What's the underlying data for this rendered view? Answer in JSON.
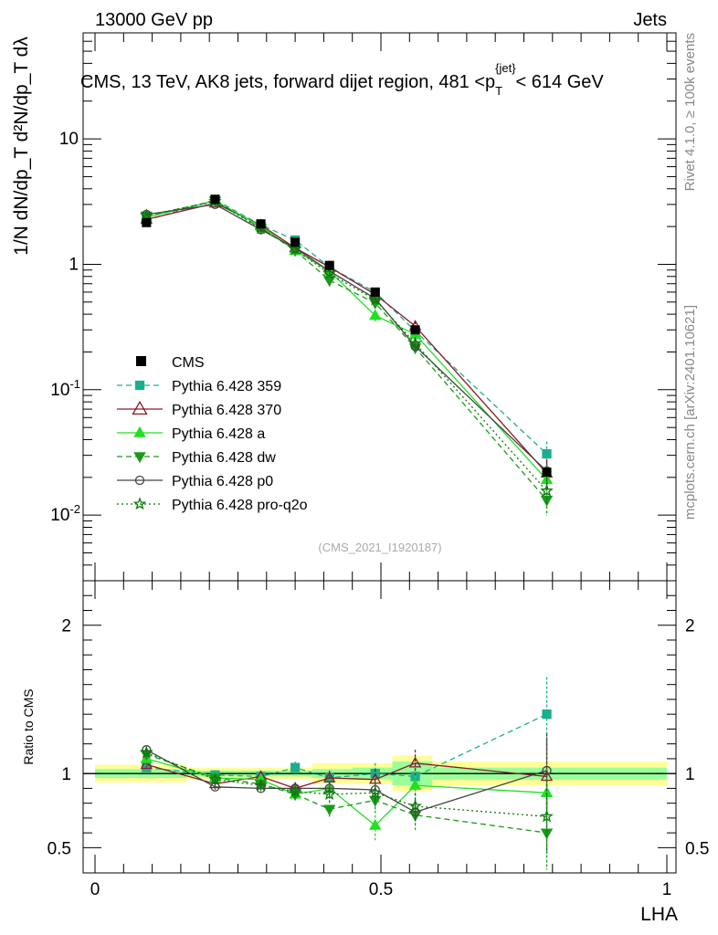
{
  "header": {
    "left": "13000 GeV pp",
    "right": "Jets"
  },
  "title": "CMS, 13 TeV, AK8 jets, forward dijet region, 481 <p",
  "title_sub": "T",
  "title_sup": "{jet}",
  "title_end": "< 614 GeV",
  "side_labels": {
    "rivet": "Rivet 4.1.0, ≥ 100k events",
    "mcplots": "mcplots.cern.ch [arXiv:2401.10621]"
  },
  "analysis_id": "(CMS_2021_I1920187)",
  "ylabel_main": "1/N dN/dp_T d²N/dp_T dλ",
  "ylabel_ratio": "Ratio to CMS",
  "xlabel": "LHA",
  "colors": {
    "cms": "#000000",
    "p359": "#1aaf8c",
    "p370": "#8b1a2a",
    "pa": "#22e022",
    "pdw": "#1a9a1a",
    "pp0": "#444444",
    "ppro": "#0a7a0a",
    "band_outer": "#ffff99",
    "band_inner": "#99ff99"
  },
  "chart_data": {
    "type": "line",
    "title": "CMS, 13 TeV, AK8 jets, forward dijet region, 481 < p_T^{jet} < 614 GeV",
    "xlabel": "LHA",
    "ylabel": "1/N dN/dp_T d²N/dp_T dλ",
    "xlim": [
      0,
      1
    ],
    "ylim": [
      0.003,
      70
    ],
    "yscale": "log",
    "ratio_ylim": [
      0.33,
      2.3
    ],
    "x_ticks": [
      "0",
      "0.5",
      "1"
    ],
    "y_ticks": [
      "10^-2",
      "10^-1",
      "1",
      "10"
    ],
    "ratio_ticks": [
      "0.5",
      "1",
      "2"
    ],
    "x": [
      0.09,
      0.21,
      0.29,
      0.35,
      0.41,
      0.49,
      0.56,
      0.79
    ],
    "reference": {
      "name": "CMS",
      "values": [
        2.15,
        3.3,
        2.1,
        1.5,
        0.98,
        0.6,
        0.3,
        0.022
      ],
      "band_edges": [
        0.0,
        0.16,
        0.25,
        0.32,
        0.38,
        0.45,
        0.52,
        0.59,
        1.0
      ],
      "band_outer": [
        0.06,
        0.04,
        0.04,
        0.04,
        0.07,
        0.07,
        0.12,
        0.08
      ],
      "band_inner": [
        0.03,
        0.02,
        0.02,
        0.02,
        0.03,
        0.04,
        0.08,
        0.04
      ]
    },
    "series": [
      {
        "name": "Pythia 6.428 359",
        "key": "p359",
        "marker": "square",
        "dash": "dashed",
        "ratio": [
          1.04,
          0.99,
          0.98,
          1.04,
          0.97,
          1.0,
          0.98,
          1.4
        ],
        "ratio_err": [
          0.02,
          0.03,
          0.03,
          0.04,
          0.05,
          0.07,
          0.08,
          0.25
        ]
      },
      {
        "name": "Pythia 6.428 370",
        "key": "p370",
        "marker": "triangle-open",
        "dash": "solid",
        "ratio": [
          1.06,
          0.93,
          0.98,
          0.9,
          0.97,
          0.96,
          1.07,
          0.98
        ],
        "ratio_err": [
          0.02,
          0.03,
          0.03,
          0.04,
          0.05,
          0.07,
          0.09,
          0.25
        ]
      },
      {
        "name": "Pythia 6.428 a",
        "key": "pa",
        "marker": "triangle",
        "dash": "solid",
        "ratio": [
          1.1,
          0.97,
          0.96,
          0.86,
          0.9,
          0.65,
          0.92,
          0.87
        ],
        "ratio_err": [
          0.02,
          0.03,
          0.03,
          0.04,
          0.06,
          0.1,
          0.1,
          0.28
        ]
      },
      {
        "name": "Pythia 6.428 dw",
        "key": "pdw",
        "marker": "triangle-down",
        "dash": "dashed",
        "ratio": [
          1.13,
          0.97,
          0.93,
          0.86,
          0.76,
          0.82,
          0.72,
          0.6
        ],
        "ratio_err": [
          0.02,
          0.03,
          0.03,
          0.04,
          0.06,
          0.08,
          0.1,
          0.25
        ]
      },
      {
        "name": "Pythia 6.428 p0",
        "key": "pp0",
        "marker": "circle-open",
        "dash": "solid",
        "ratio": [
          1.16,
          0.91,
          0.9,
          0.9,
          0.9,
          0.89,
          0.74,
          1.02
        ],
        "ratio_err": [
          0.02,
          0.02,
          0.03,
          0.04,
          0.05,
          0.07,
          0.08,
          0.25
        ]
      },
      {
        "name": "Pythia 6.428 pro-q2o",
        "key": "ppro",
        "marker": "star",
        "dash": "dotted",
        "ratio": [
          1.14,
          0.96,
          0.92,
          0.88,
          0.86,
          0.87,
          0.78,
          0.71
        ],
        "ratio_err": [
          0.02,
          0.03,
          0.03,
          0.04,
          0.05,
          0.07,
          0.09,
          0.25
        ]
      }
    ]
  }
}
